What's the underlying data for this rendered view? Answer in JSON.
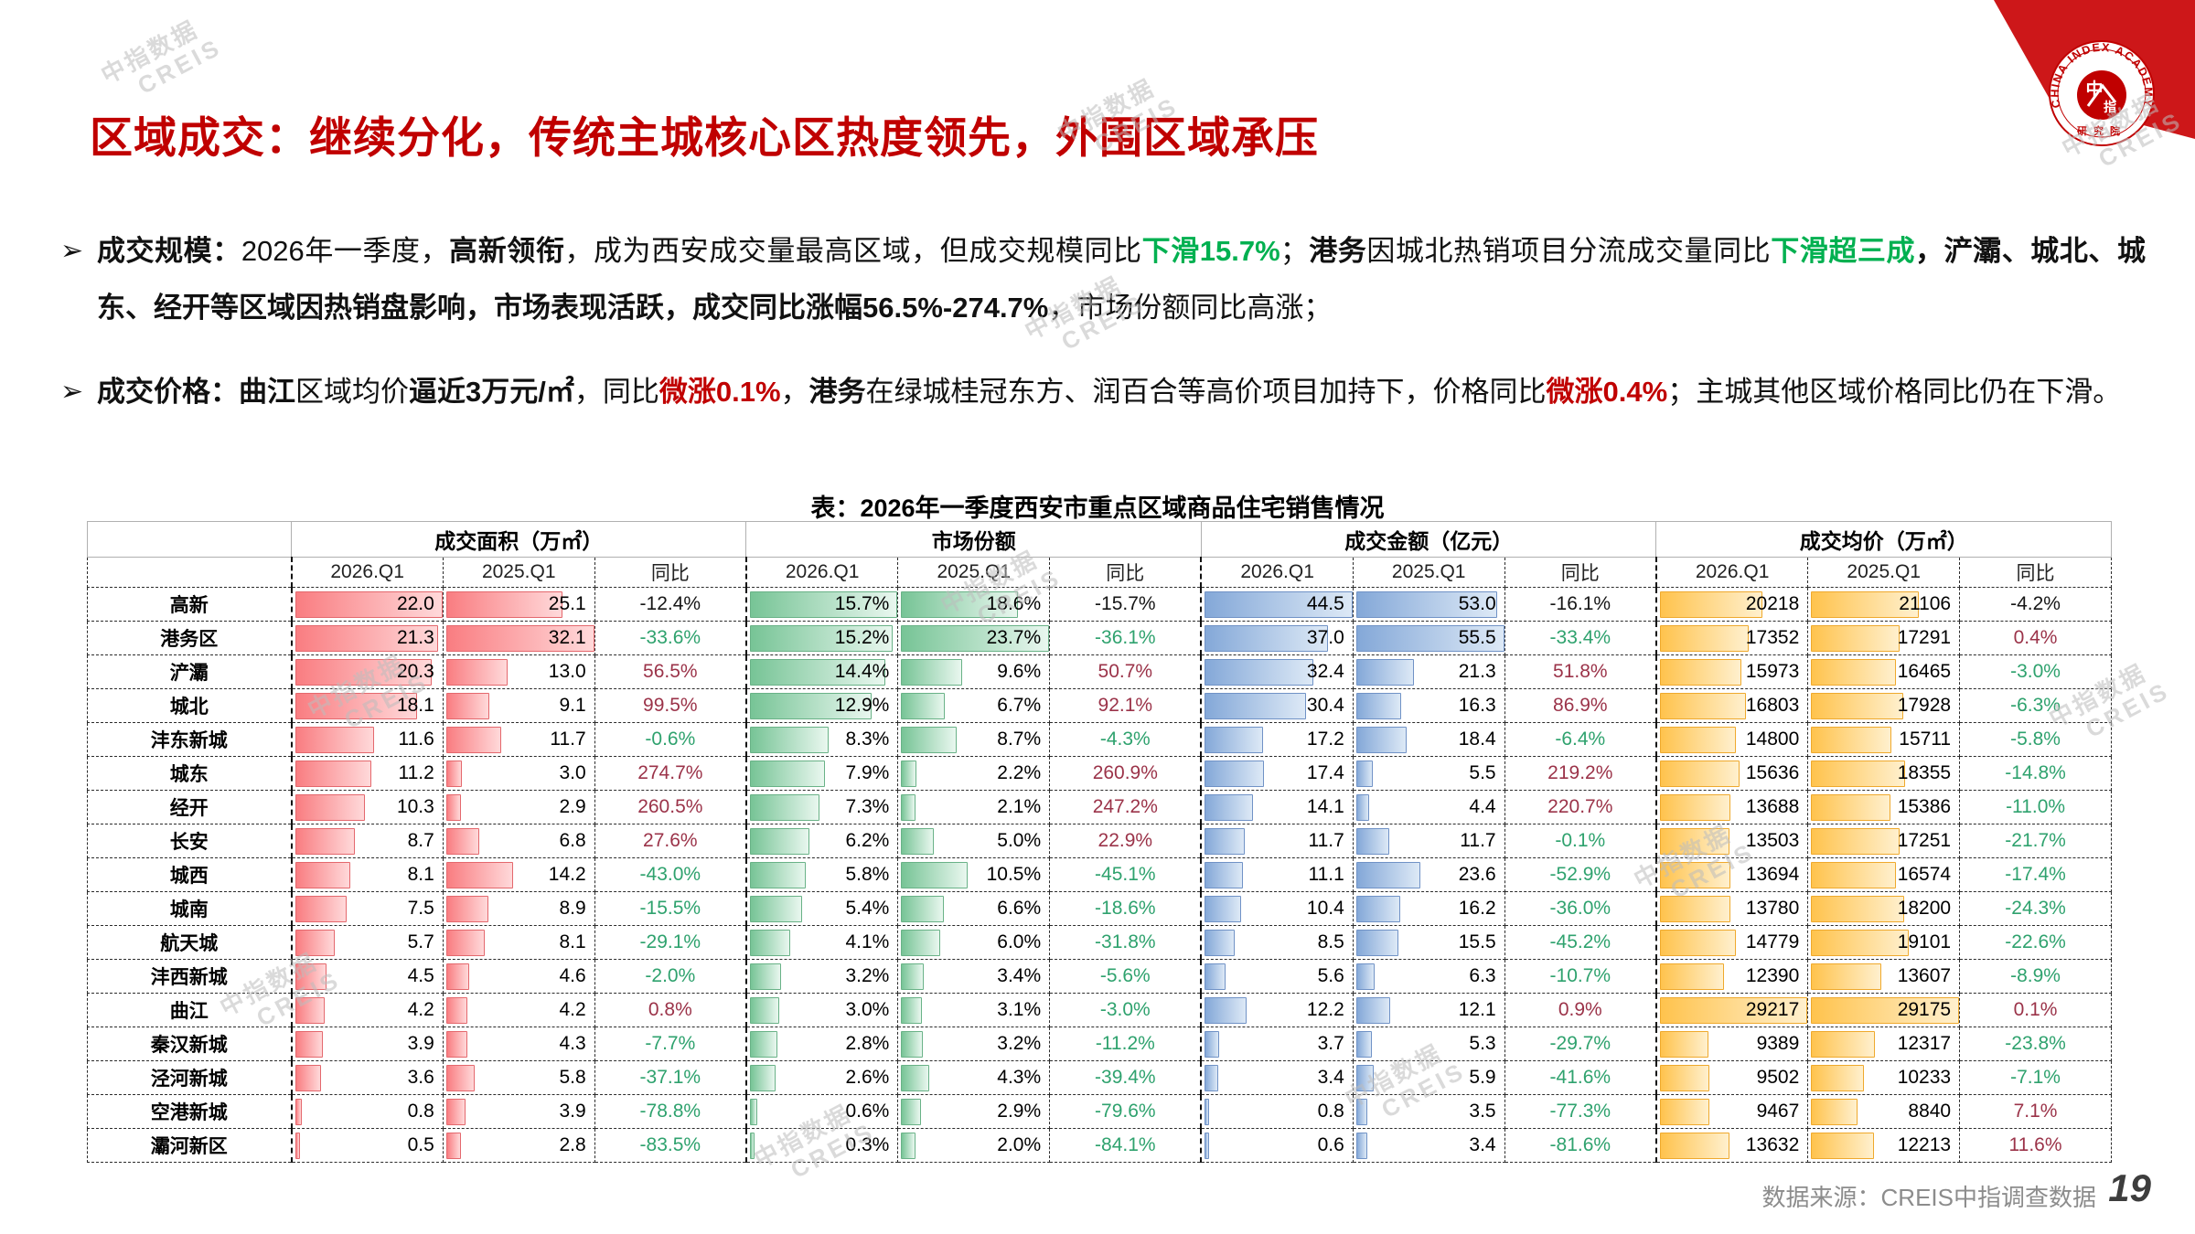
{
  "page": {
    "title": "区域成交：继续分化，传统主城核心区热度领先，外围区域承压",
    "source": "数据来源：CREIS中指调查数据",
    "page_number": "19",
    "bullet_marker": "➢"
  },
  "colors": {
    "title_red": "#C00000",
    "highlight_green": "#00B050",
    "highlight_red": "#C00000",
    "yoy_positive": "#9B3349",
    "yoy_negative": "#2FA26E",
    "bar_area": "#f97d81",
    "bar_share": "#77c496",
    "bar_amount": "#84a8d8",
    "bar_price": "#ffc34d",
    "corner_red": "#CD1719"
  },
  "watermark": {
    "line1": "中指数据",
    "line2": "CREIS"
  },
  "logo": {
    "ring_text": "CHINA INDEX ACADEMY",
    "center_text": "中指",
    "bottom_text": "研究院"
  },
  "bullets": [
    {
      "segments": [
        {
          "t": "成交规模：",
          "b": true,
          "c": ""
        },
        {
          "t": "2026年一季度，",
          "b": false,
          "c": ""
        },
        {
          "t": "高新领衔",
          "b": true,
          "c": ""
        },
        {
          "t": "，成为西安成交量最高区域，但成交规模同比",
          "b": false,
          "c": ""
        },
        {
          "t": "下滑15.7%",
          "b": true,
          "c": "green"
        },
        {
          "t": "；",
          "b": false,
          "c": ""
        },
        {
          "t": "港务",
          "b": true,
          "c": ""
        },
        {
          "t": "因城北热销项目分流成交量同比",
          "b": false,
          "c": ""
        },
        {
          "t": "下滑超三成",
          "b": true,
          "c": "green"
        },
        {
          "t": "，浐灞、城北、城东、经开等区域因热销盘影响，市场表现活跃，成交同比涨幅56.5%-274.7%",
          "b": true,
          "c": ""
        },
        {
          "t": "，市场份额同比高涨；",
          "b": false,
          "c": ""
        }
      ]
    },
    {
      "segments": [
        {
          "t": "成交价格：",
          "b": true,
          "c": ""
        },
        {
          "t": "曲江",
          "b": true,
          "c": ""
        },
        {
          "t": "区域均价",
          "b": false,
          "c": ""
        },
        {
          "t": "逼近3万元/㎡",
          "b": true,
          "c": ""
        },
        {
          "t": "，同比",
          "b": false,
          "c": ""
        },
        {
          "t": "微涨0.1%",
          "b": true,
          "c": "red"
        },
        {
          "t": "，",
          "b": false,
          "c": ""
        },
        {
          "t": "港务",
          "b": true,
          "c": ""
        },
        {
          "t": "在绿城桂冠东方、润百合等高价项目加持下，价格同比",
          "b": false,
          "c": ""
        },
        {
          "t": "微涨0.4%",
          "b": true,
          "c": "red"
        },
        {
          "t": "；主城其他区域价格同比仍在下滑。",
          "b": false,
          "c": ""
        }
      ]
    }
  ],
  "table": {
    "title": "表：2026年一季度西安市重点区域商品住宅销售情况",
    "sub_headers": [
      "2026.Q1",
      "2025.Q1",
      "同比"
    ],
    "groups": [
      {
        "key": "area",
        "label": "成交面积（万㎡）",
        "bar": "red",
        "max_2026": 22.0,
        "max_2025": 32.1
      },
      {
        "key": "share",
        "label": "市场份额",
        "bar": "green",
        "max_2026": 15.7,
        "max_2025": 23.7
      },
      {
        "key": "amount",
        "label": "成交金额（亿元）",
        "bar": "blue",
        "max_2026": 44.5,
        "max_2025": 55.5
      },
      {
        "key": "price",
        "label": "成交均价（万㎡）",
        "bar": "orange",
        "max_2026": 29217,
        "max_2025": 29175
      }
    ],
    "rows": [
      {
        "region": "高新",
        "area": [
          "22.0",
          "25.1",
          "-12.4%",
          "flat"
        ],
        "share": [
          "15.7%",
          "18.6%",
          "-15.7%",
          "flat"
        ],
        "amount": [
          "44.5",
          "53.0",
          "-16.1%",
          "flat"
        ],
        "price": [
          "20218",
          "21106",
          "-4.2%",
          "flat"
        ]
      },
      {
        "region": "港务区",
        "area": [
          "21.3",
          "32.1",
          "-33.6%",
          "neg"
        ],
        "share": [
          "15.2%",
          "23.7%",
          "-36.1%",
          "neg"
        ],
        "amount": [
          "37.0",
          "55.5",
          "-33.4%",
          "neg"
        ],
        "price": [
          "17352",
          "17291",
          "0.4%",
          "pos"
        ]
      },
      {
        "region": "浐灞",
        "area": [
          "20.3",
          "13.0",
          "56.5%",
          "pos"
        ],
        "share": [
          "14.4%",
          "9.6%",
          "50.7%",
          "pos"
        ],
        "amount": [
          "32.4",
          "21.3",
          "51.8%",
          "pos"
        ],
        "price": [
          "15973",
          "16465",
          "-3.0%",
          "neg"
        ]
      },
      {
        "region": "城北",
        "area": [
          "18.1",
          "9.1",
          "99.5%",
          "pos"
        ],
        "share": [
          "12.9%",
          "6.7%",
          "92.1%",
          "pos"
        ],
        "amount": [
          "30.4",
          "16.3",
          "86.9%",
          "pos"
        ],
        "price": [
          "16803",
          "17928",
          "-6.3%",
          "neg"
        ]
      },
      {
        "region": "沣东新城",
        "area": [
          "11.6",
          "11.7",
          "-0.6%",
          "neg"
        ],
        "share": [
          "8.3%",
          "8.7%",
          "-4.3%",
          "neg"
        ],
        "amount": [
          "17.2",
          "18.4",
          "-6.4%",
          "neg"
        ],
        "price": [
          "14800",
          "15711",
          "-5.8%",
          "neg"
        ]
      },
      {
        "region": "城东",
        "area": [
          "11.2",
          "3.0",
          "274.7%",
          "pos"
        ],
        "share": [
          "7.9%",
          "2.2%",
          "260.9%",
          "pos"
        ],
        "amount": [
          "17.4",
          "5.5",
          "219.2%",
          "pos"
        ],
        "price": [
          "15636",
          "18355",
          "-14.8%",
          "neg"
        ]
      },
      {
        "region": "经开",
        "area": [
          "10.3",
          "2.9",
          "260.5%",
          "pos"
        ],
        "share": [
          "7.3%",
          "2.1%",
          "247.2%",
          "pos"
        ],
        "amount": [
          "14.1",
          "4.4",
          "220.7%",
          "pos"
        ],
        "price": [
          "13688",
          "15386",
          "-11.0%",
          "neg"
        ]
      },
      {
        "region": "长安",
        "area": [
          "8.7",
          "6.8",
          "27.6%",
          "pos"
        ],
        "share": [
          "6.2%",
          "5.0%",
          "22.9%",
          "pos"
        ],
        "amount": [
          "11.7",
          "11.7",
          "-0.1%",
          "neg"
        ],
        "price": [
          "13503",
          "17251",
          "-21.7%",
          "neg"
        ]
      },
      {
        "region": "城西",
        "area": [
          "8.1",
          "14.2",
          "-43.0%",
          "neg"
        ],
        "share": [
          "5.8%",
          "10.5%",
          "-45.1%",
          "neg"
        ],
        "amount": [
          "11.1",
          "23.6",
          "-52.9%",
          "neg"
        ],
        "price": [
          "13694",
          "16574",
          "-17.4%",
          "neg"
        ]
      },
      {
        "region": "城南",
        "area": [
          "7.5",
          "8.9",
          "-15.5%",
          "neg"
        ],
        "share": [
          "5.4%",
          "6.6%",
          "-18.6%",
          "neg"
        ],
        "amount": [
          "10.4",
          "16.2",
          "-36.0%",
          "neg"
        ],
        "price": [
          "13780",
          "18200",
          "-24.3%",
          "neg"
        ]
      },
      {
        "region": "航天城",
        "area": [
          "5.7",
          "8.1",
          "-29.1%",
          "neg"
        ],
        "share": [
          "4.1%",
          "6.0%",
          "-31.8%",
          "neg"
        ],
        "amount": [
          "8.5",
          "15.5",
          "-45.2%",
          "neg"
        ],
        "price": [
          "14779",
          "19101",
          "-22.6%",
          "neg"
        ]
      },
      {
        "region": "沣西新城",
        "area": [
          "4.5",
          "4.6",
          "-2.0%",
          "neg"
        ],
        "share": [
          "3.2%",
          "3.4%",
          "-5.6%",
          "neg"
        ],
        "amount": [
          "5.6",
          "6.3",
          "-10.7%",
          "neg"
        ],
        "price": [
          "12390",
          "13607",
          "-8.9%",
          "neg"
        ]
      },
      {
        "region": "曲江",
        "area": [
          "4.2",
          "4.2",
          "0.8%",
          "pos"
        ],
        "share": [
          "3.0%",
          "3.1%",
          "-3.0%",
          "neg"
        ],
        "amount": [
          "12.2",
          "12.1",
          "0.9%",
          "pos"
        ],
        "price": [
          "29217",
          "29175",
          "0.1%",
          "pos"
        ]
      },
      {
        "region": "秦汉新城",
        "area": [
          "3.9",
          "4.3",
          "-7.7%",
          "neg"
        ],
        "share": [
          "2.8%",
          "3.2%",
          "-11.2%",
          "neg"
        ],
        "amount": [
          "3.7",
          "5.3",
          "-29.7%",
          "neg"
        ],
        "price": [
          "9389",
          "12317",
          "-23.8%",
          "neg"
        ]
      },
      {
        "region": "泾河新城",
        "area": [
          "3.6",
          "5.8",
          "-37.1%",
          "neg"
        ],
        "share": [
          "2.6%",
          "4.3%",
          "-39.4%",
          "neg"
        ],
        "amount": [
          "3.4",
          "5.9",
          "-41.6%",
          "neg"
        ],
        "price": [
          "9502",
          "10233",
          "-7.1%",
          "neg"
        ]
      },
      {
        "region": "空港新城",
        "area": [
          "0.8",
          "3.9",
          "-78.8%",
          "neg"
        ],
        "share": [
          "0.6%",
          "2.9%",
          "-79.6%",
          "neg"
        ],
        "amount": [
          "0.8",
          "3.5",
          "-77.3%",
          "neg"
        ],
        "price": [
          "9467",
          "8840",
          "7.1%",
          "pos"
        ]
      },
      {
        "region": "灞河新区",
        "area": [
          "0.5",
          "2.8",
          "-83.5%",
          "neg"
        ],
        "share": [
          "0.3%",
          "2.0%",
          "-84.1%",
          "neg"
        ],
        "amount": [
          "0.6",
          "3.4",
          "-81.6%",
          "neg"
        ],
        "price": [
          "13632",
          "12213",
          "11.6%",
          "pos"
        ]
      }
    ]
  }
}
